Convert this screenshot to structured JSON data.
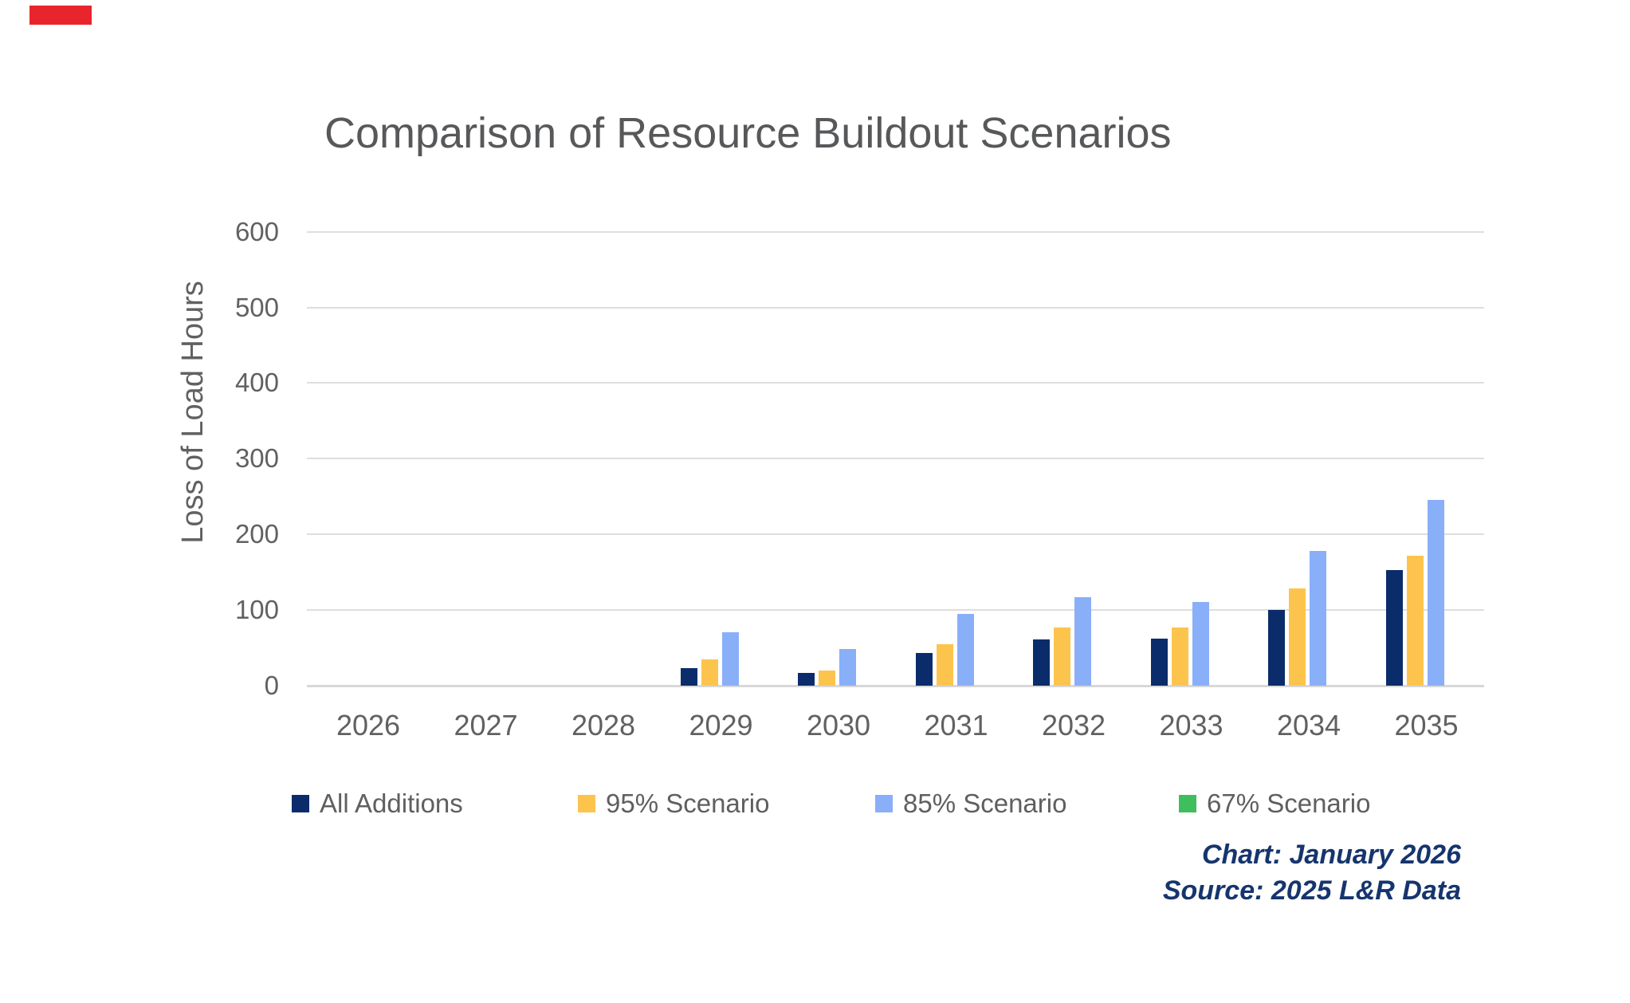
{
  "branding": {
    "logo_color": "#e8252c"
  },
  "chart_data": {
    "type": "bar",
    "title": "Comparison of Resource Buildout Scenarios",
    "xlabel": "",
    "ylabel": "Loss of Load Hours",
    "ylim": [
      0,
      600
    ],
    "yticks": [
      0,
      100,
      200,
      300,
      400,
      500,
      600
    ],
    "grid": true,
    "legend_position": "bottom",
    "categories": [
      "2026",
      "2027",
      "2028",
      "2029",
      "2030",
      "2031",
      "2032",
      "2033",
      "2034",
      "2035"
    ],
    "series": [
      {
        "name": "All Additions",
        "color": "#0b2c6b",
        "values": [
          0,
          0,
          0,
          23,
          17,
          43,
          61,
          62,
          100,
          153
        ]
      },
      {
        "name": "95% Scenario",
        "color": "#fdc44d",
        "values": [
          0,
          0,
          0,
          35,
          20,
          55,
          77,
          77,
          129,
          172
        ]
      },
      {
        "name": "85% Scenario",
        "color": "#8aaff9",
        "values": [
          0,
          0,
          0,
          71,
          48,
          95,
          117,
          111,
          178,
          246
        ]
      },
      {
        "name": "67% Scenario",
        "color": "#3fbe5e",
        "values": [
          0,
          0,
          0,
          0,
          0,
          0,
          0,
          0,
          0,
          0
        ]
      }
    ]
  },
  "notes": {
    "chart_line": "Chart: January 2026",
    "source_line": "Source: 2025 L&R Data"
  }
}
